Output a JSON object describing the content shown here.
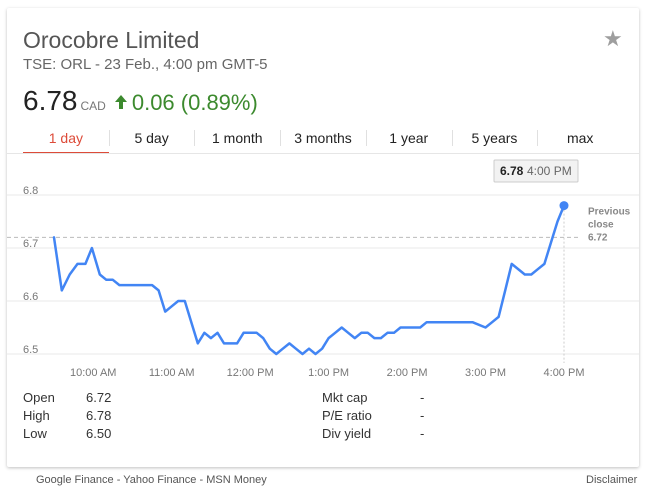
{
  "header": {
    "title": "Orocobre Limited",
    "subtitle": "TSE: ORL - 23 Feb., 4:00 pm GMT-5"
  },
  "quote": {
    "price": "6.78",
    "currency": "CAD",
    "change": "0.06 (0.89%)",
    "change_color": "#3c8a2e"
  },
  "tabs": [
    {
      "label": "1 day",
      "active": true
    },
    {
      "label": "5 day"
    },
    {
      "label": "1 month"
    },
    {
      "label": "3 months"
    },
    {
      "label": "1 year"
    },
    {
      "label": "5 years"
    },
    {
      "label": "max"
    }
  ],
  "chart_data": {
    "type": "line",
    "line_color": "#4285f4",
    "ylim": [
      6.5,
      6.8
    ],
    "y_ticks": [
      "6.8",
      "6.7",
      "6.6",
      "6.5"
    ],
    "x_ticks": [
      "10:00 AM",
      "11:00 AM",
      "12:00 PM",
      "1:00 PM",
      "2:00 PM",
      "3:00 PM",
      "4:00 PM"
    ],
    "x_range": [
      "9:30 AM",
      "4:00 PM"
    ],
    "grid": true,
    "series": [
      {
        "x": [
          "9:30",
          "9:36",
          "9:42",
          "9:48",
          "9:54",
          "9:59",
          "10:05",
          "10:10",
          "10:15",
          "10:20",
          "10:30",
          "10:35",
          "10:45",
          "10:50",
          "10:55",
          "11:00",
          "11:05",
          "11:10",
          "11:15",
          "11:20",
          "11:25",
          "11:30",
          "11:35",
          "11:40",
          "11:45",
          "11:50",
          "11:55",
          "12:00",
          "12:05",
          "12:10",
          "12:15",
          "12:20",
          "12:25",
          "12:30",
          "12:35",
          "12:40",
          "12:45",
          "12:50",
          "12:55",
          "13:00",
          "13:05",
          "13:10",
          "13:15",
          "13:20",
          "13:25",
          "13:30",
          "13:35",
          "13:40",
          "13:45",
          "13:50",
          "13:55",
          "14:00",
          "14:05",
          "14:10",
          "14:15",
          "14:20",
          "14:25",
          "14:30",
          "14:40",
          "14:50",
          "15:00",
          "15:05",
          "15:10",
          "15:15",
          "15:20",
          "15:30",
          "15:35",
          "15:40",
          "15:45",
          "15:50",
          "15:55",
          "16:00"
        ],
        "values": [
          6.72,
          6.62,
          6.65,
          6.67,
          6.67,
          6.7,
          6.65,
          6.64,
          6.64,
          6.63,
          6.63,
          6.63,
          6.63,
          6.62,
          6.58,
          6.59,
          6.6,
          6.6,
          6.56,
          6.52,
          6.54,
          6.53,
          6.54,
          6.52,
          6.52,
          6.52,
          6.54,
          6.54,
          6.54,
          6.53,
          6.51,
          6.5,
          6.51,
          6.52,
          6.51,
          6.5,
          6.51,
          6.5,
          6.51,
          6.53,
          6.54,
          6.55,
          6.54,
          6.53,
          6.54,
          6.54,
          6.53,
          6.53,
          6.54,
          6.54,
          6.55,
          6.55,
          6.55,
          6.55,
          6.56,
          6.56,
          6.56,
          6.56,
          6.56,
          6.56,
          6.55,
          6.56,
          6.57,
          6.62,
          6.67,
          6.65,
          6.65,
          6.66,
          6.67,
          6.71,
          6.75,
          6.78
        ]
      }
    ],
    "previous_close": 6.72,
    "previous_close_label": [
      "Previous",
      "close",
      "6.72"
    ],
    "tooltip": {
      "value": "6.78",
      "time": "4:00 PM"
    }
  },
  "stats_left": [
    {
      "label": "Open",
      "value": "6.72"
    },
    {
      "label": "High",
      "value": "6.78"
    },
    {
      "label": "Low",
      "value": "6.50"
    }
  ],
  "stats_right": [
    {
      "label": "Mkt cap",
      "value": "-"
    },
    {
      "label": "P/E ratio",
      "value": "-"
    },
    {
      "label": "Div yield",
      "value": "-"
    }
  ],
  "footer": {
    "sources": "Google Finance - Yahoo Finance - MSN Money",
    "disclaimer": "Disclaimer"
  }
}
